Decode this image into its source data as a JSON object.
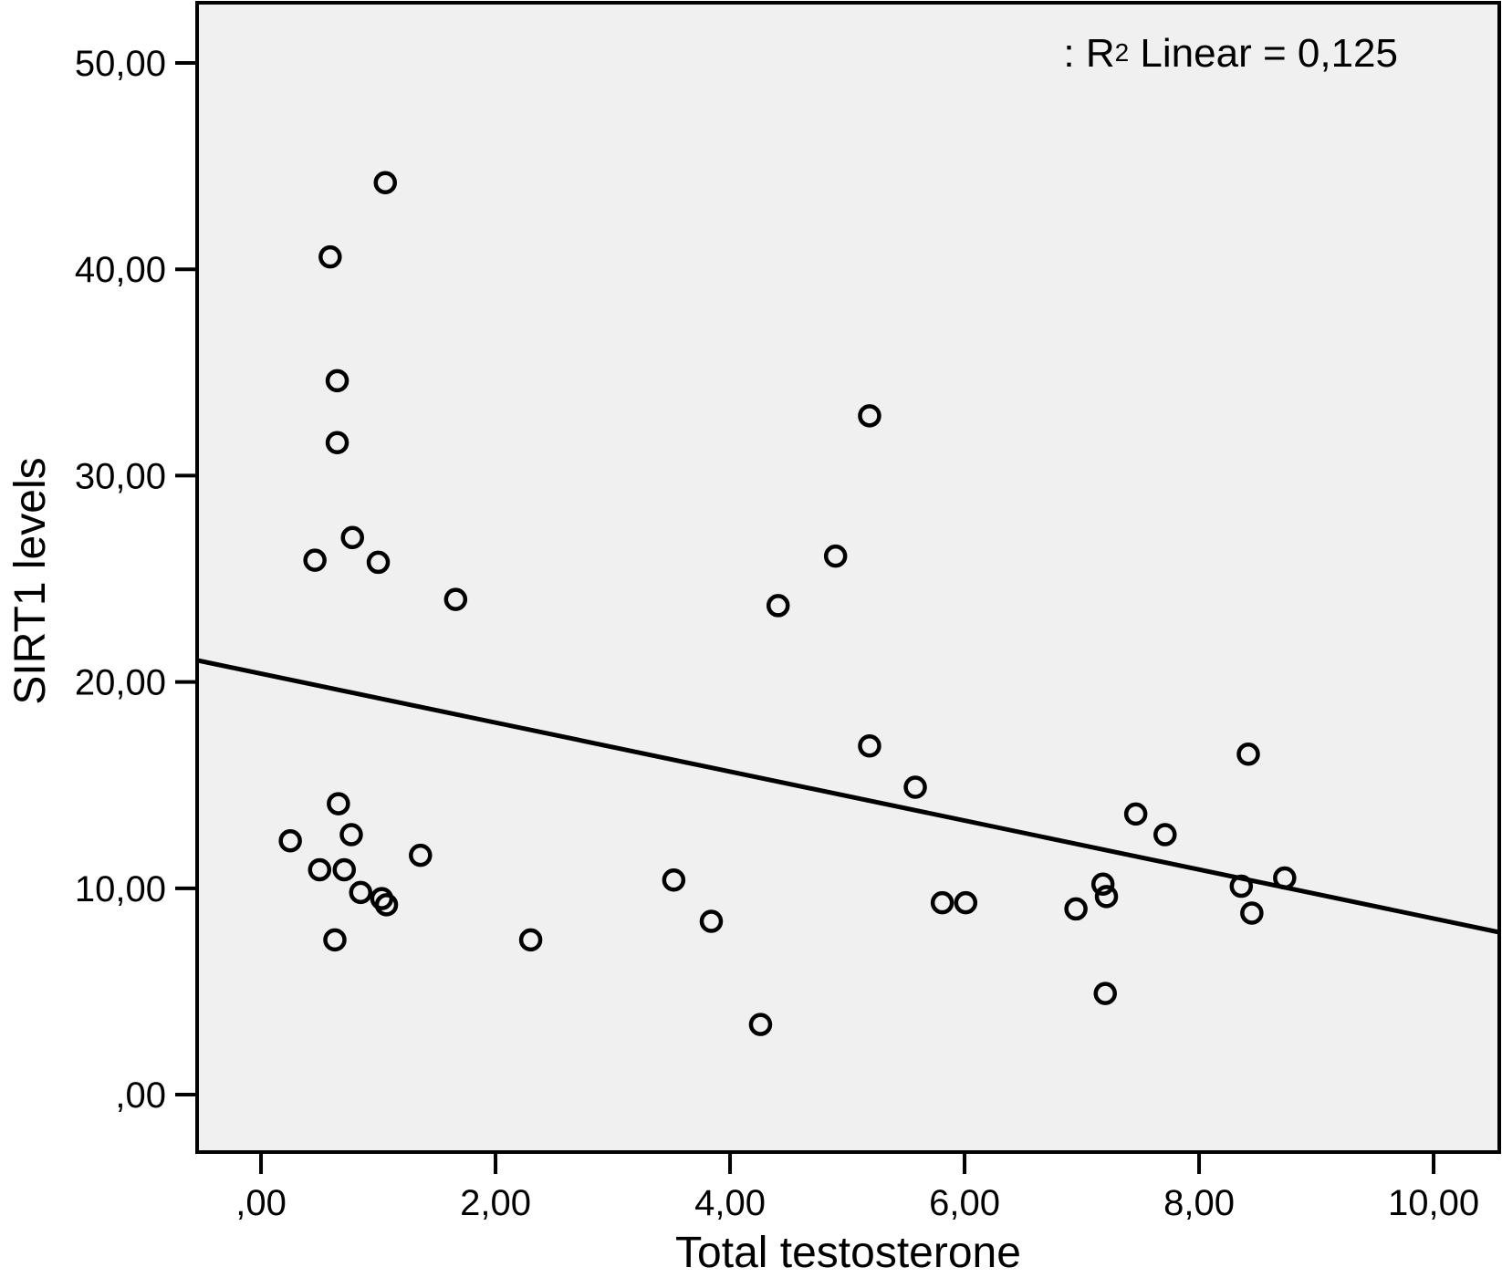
{
  "figure": {
    "annotation": {
      "prefix": ": R",
      "sup": "2",
      "rest": " Linear = 0,125"
    },
    "x_axis_title": "Total testosterone",
    "y_axis_title": "SIRT1 levels",
    "colors": {
      "page_bg": "#ffffff",
      "plot_bg": "#f0f0f0",
      "line": "#000000"
    }
  },
  "chart_data": {
    "type": "scatter",
    "title": "",
    "xlabel": "Total testosterone",
    "ylabel": "SIRT1 levels",
    "annotation_text": ": R² Linear = 0,125",
    "r_squared": 0.125,
    "marker": "open-circle",
    "grid": false,
    "legend": "none",
    "decimal_separator": ",",
    "xlim": [
      -0.545,
      10.56
    ],
    "ylim": [
      -2.785,
      52.92
    ],
    "x_ticks": [
      0,
      2,
      4,
      6,
      8,
      10
    ],
    "x_tick_labels": [
      ",00",
      "2,00",
      "4,00",
      "6,00",
      "8,00",
      "10,00"
    ],
    "y_ticks": [
      0,
      10,
      20,
      30,
      40,
      50
    ],
    "y_tick_labels": [
      ",00",
      "10,00",
      "20,00",
      "30,00",
      "40,00",
      "50,00"
    ],
    "points": [
      [
        1.06,
        44.2
      ],
      [
        0.59,
        40.6
      ],
      [
        0.65,
        34.6
      ],
      [
        0.65,
        31.6
      ],
      [
        0.78,
        27.0
      ],
      [
        0.46,
        25.9
      ],
      [
        1.0,
        25.8
      ],
      [
        1.66,
        24.0
      ],
      [
        0.66,
        14.1
      ],
      [
        0.77,
        12.6
      ],
      [
        0.25,
        12.3
      ],
      [
        1.36,
        11.6
      ],
      [
        0.5,
        10.9
      ],
      [
        0.71,
        10.9
      ],
      [
        0.85,
        9.8
      ],
      [
        1.03,
        9.5
      ],
      [
        1.07,
        9.2
      ],
      [
        0.63,
        7.5
      ],
      [
        3.52,
        10.4
      ],
      [
        3.84,
        8.4
      ],
      [
        2.3,
        7.5
      ],
      [
        4.26,
        3.4
      ],
      [
        5.19,
        32.9
      ],
      [
        4.9,
        26.1
      ],
      [
        4.41,
        23.7
      ],
      [
        5.19,
        16.9
      ],
      [
        5.58,
        14.9
      ],
      [
        8.42,
        16.5
      ],
      [
        7.46,
        13.6
      ],
      [
        7.71,
        12.6
      ],
      [
        7.18,
        10.2
      ],
      [
        7.21,
        9.6
      ],
      [
        6.95,
        9.0
      ],
      [
        5.81,
        9.3
      ],
      [
        6.01,
        9.3
      ],
      [
        8.36,
        10.1
      ],
      [
        8.73,
        10.5
      ],
      [
        8.45,
        8.8
      ],
      [
        7.2,
        4.9
      ]
    ],
    "trendline": {
      "x": [
        -0.545,
        10.56
      ],
      "y": [
        21.05,
        7.87
      ]
    }
  }
}
